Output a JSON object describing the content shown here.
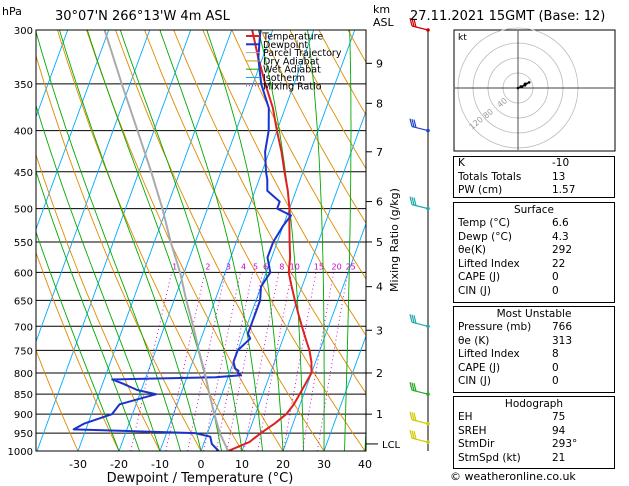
{
  "header": {
    "hpa_label": "hPa",
    "location": "30°07'N  266°13'W  4m  ASL",
    "km_label": "km",
    "asl_label": "ASL",
    "datetime": "27.11.2021  15GMT  (Base: 12)"
  },
  "chart_data": {
    "type": "line",
    "title": "30°07'N  266°13'W  4m  ASL",
    "xlabel": "Dewpoint / Temperature (°C)",
    "ylabel": "hPa",
    "y2label": "Mixing Ratio (g/kg)",
    "xlim": [
      -35,
      40
    ],
    "ylim": [
      1000,
      300
    ],
    "pressure_ticks": [
      300,
      350,
      400,
      450,
      500,
      550,
      600,
      650,
      700,
      750,
      800,
      850,
      900,
      950,
      1000
    ],
    "temp_ticks": [
      -30,
      -20,
      -10,
      0,
      10,
      20,
      30,
      40
    ],
    "km_ticks": [
      {
        "label": "9",
        "p": 330
      },
      {
        "label": "8",
        "p": 370
      },
      {
        "label": "7",
        "p": 425
      },
      {
        "label": "6",
        "p": 490
      },
      {
        "label": "5",
        "p": 550
      },
      {
        "label": "4",
        "p": 625
      },
      {
        "label": "3",
        "p": 708
      },
      {
        "label": "2",
        "p": 800
      },
      {
        "label": "1",
        "p": 900
      }
    ],
    "lcl_label": "LCL",
    "lcl_p": 980,
    "mixing_ratio_labels": [
      "1",
      "2",
      "3",
      "4",
      "5",
      "6",
      "8",
      "10",
      "15",
      "20",
      "25"
    ],
    "legend": [
      "Temperature",
      "Dewpoint",
      "Parcel Trajectory",
      "Dry Adiabat",
      "Wet Adiabat",
      "Isotherm",
      "Mixing Ratio"
    ],
    "legend_placement": "top-center",
    "series": [
      {
        "name": "Temperature",
        "p": [
          1000,
          975,
          950,
          925,
          900,
          875,
          850,
          825,
          800,
          775,
          750,
          725,
          700,
          675,
          650,
          625,
          600,
          575,
          550,
          525,
          500,
          475,
          450,
          425,
          400,
          375,
          350,
          325,
          300
        ],
        "t": [
          6.6,
          11,
          13,
          15.5,
          17.5,
          18.5,
          19,
          19.5,
          20,
          19,
          17.5,
          15.5,
          13.5,
          11.5,
          9.5,
          7.5,
          5.5,
          4.5,
          3,
          1.5,
          0,
          -2,
          -4.5,
          -7,
          -10,
          -13,
          -17,
          -21,
          -25
        ]
      },
      {
        "name": "Dewpoint",
        "p": [
          1000,
          980,
          960,
          950,
          945,
          940,
          925,
          900,
          875,
          850,
          840,
          825,
          815,
          810,
          805,
          800,
          795,
          790,
          775,
          750,
          725,
          715,
          700,
          675,
          650,
          625,
          600,
          575,
          550,
          525,
          510,
          500,
          490,
          475,
          460,
          450,
          425,
          400,
          375,
          350,
          325,
          300
        ],
        "t": [
          4.3,
          2,
          1,
          -3,
          -18,
          -33,
          -31,
          -25,
          -24,
          -16,
          -21,
          -25,
          -28,
          -3,
          3,
          2,
          2,
          1,
          0,
          0,
          2,
          1,
          1,
          1,
          1,
          0,
          1,
          -1,
          -1,
          0,
          1,
          -3,
          -3,
          -7,
          -8,
          -9,
          -11,
          -12,
          -14,
          -18,
          -21,
          -23
        ]
      },
      {
        "name": "Parcel Trajectory",
        "p": [
          1000,
          950,
          900,
          850,
          800,
          750,
          700,
          650,
          600,
          550,
          500,
          450,
          400,
          350,
          300
        ],
        "t": [
          6.6,
          3,
          0,
          -3,
          -6,
          -9.5,
          -13,
          -17,
          -21,
          -26,
          -31,
          -37,
          -44,
          -52,
          -61
        ]
      }
    ],
    "hodograph": {
      "label": "kt",
      "ring_labels": [
        "120",
        "80",
        "40"
      ],
      "u": [
        0,
        2,
        5,
        8,
        5,
        3
      ],
      "v": [
        0,
        1,
        2,
        4,
        3,
        1
      ]
    },
    "wind_barbs": [
      {
        "p": 300,
        "color": "#cc0000"
      },
      {
        "p": 400,
        "color": "#2244cc"
      },
      {
        "p": 500,
        "color": "#22aaaa"
      },
      {
        "p": 700,
        "color": "#22aaaa"
      },
      {
        "p": 850,
        "color": "#22aa22"
      },
      {
        "p": 925,
        "color": "#cccc00"
      },
      {
        "p": 975,
        "color": "#cccc00"
      }
    ]
  },
  "indices": {
    "top": [
      {
        "label": "K",
        "value": "-10"
      },
      {
        "label": "Totals Totals",
        "value": "13"
      },
      {
        "label": "PW (cm)",
        "value": "1.57"
      }
    ],
    "surface": {
      "title": "Surface",
      "rows": [
        {
          "label": "Temp (°C)",
          "value": "6.6"
        },
        {
          "label": "Dewp (°C)",
          "value": "4.3"
        },
        {
          "label": "θe(K)",
          "value": "292"
        },
        {
          "label": "Lifted Index",
          "value": "22"
        },
        {
          "label": "CAPE (J)",
          "value": "0"
        },
        {
          "label": "CIN (J)",
          "value": "0"
        }
      ]
    },
    "unstable": {
      "title": "Most Unstable",
      "rows": [
        {
          "label": "Pressure (mb)",
          "value": "766"
        },
        {
          "label": "θe (K)",
          "value": "313"
        },
        {
          "label": "Lifted Index",
          "value": "8"
        },
        {
          "label": "CAPE (J)",
          "value": "0"
        },
        {
          "label": "CIN (J)",
          "value": "0"
        }
      ]
    },
    "hodograph": {
      "title": "Hodograph",
      "rows": [
        {
          "label": "EH",
          "value": "75"
        },
        {
          "label": "SREH",
          "value": "94"
        },
        {
          "label": "StmDir",
          "value": "293°"
        },
        {
          "label": "StmSpd (kt)",
          "value": "21"
        }
      ]
    }
  },
  "footer": {
    "text": "© weatheronline.co.uk"
  },
  "colors": {
    "temperature": "#e02020",
    "dewpoint": "#1a33cc",
    "parcel": "#aaaaaa",
    "dry_adiabat": "#e08a00",
    "wet_adiabat": "#00aa00",
    "isotherm": "#00aaff",
    "mixing_ratio": "#cc00cc"
  }
}
